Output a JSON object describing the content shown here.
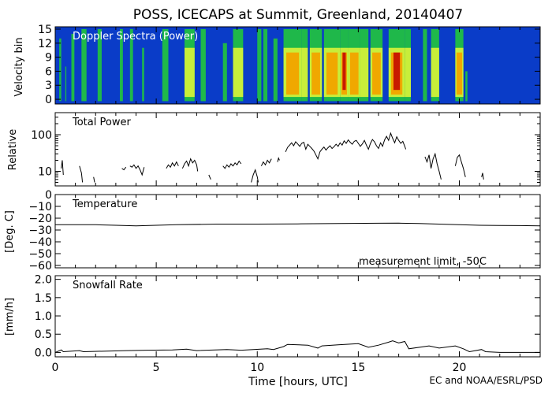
{
  "page": {
    "title": "POSS, ICECAPS at Summit, Greenland, 20140407",
    "xlabel": "Time [hours, UTC]",
    "credit": "EC and NOAA/ESRL/PSD",
    "x_ticks": [
      "0",
      "5",
      "10",
      "15",
      "20"
    ]
  },
  "chart_data": [
    {
      "type": "heatmap",
      "panel": "Doppler Spectra (Power)",
      "title": "Doppler Spectra (Power)",
      "ylabel": "Velocity bin",
      "xlim": [
        0,
        24
      ],
      "ylim": [
        -1,
        15.5
      ],
      "y_ticks": [
        0,
        3,
        6,
        9,
        12,
        15
      ],
      "y_tick_labels": [
        "0",
        "3",
        "6",
        "9",
        "12",
        "15"
      ],
      "colors": {
        "background": "#0a3cc8",
        "low": "#1fb84a",
        "mid": "#c8ee3a",
        "high": "#f0a800",
        "peak": "#c81a00"
      },
      "echo_segments": [
        {
          "x0": 0.2,
          "x1": 0.3,
          "top": 13,
          "level": 1
        },
        {
          "x0": 0.5,
          "x1": 0.55,
          "top": 7,
          "level": 1
        },
        {
          "x0": 0.8,
          "x1": 0.95,
          "top": 14,
          "level": 1
        },
        {
          "x0": 1.3,
          "x1": 1.55,
          "top": 15,
          "level": 1
        },
        {
          "x0": 2.1,
          "x1": 2.3,
          "top": 15,
          "level": 1
        },
        {
          "x0": 3.2,
          "x1": 3.35,
          "top": 15,
          "level": 1
        },
        {
          "x0": 3.7,
          "x1": 3.85,
          "top": 15,
          "level": 1
        },
        {
          "x0": 4.3,
          "x1": 4.4,
          "top": 11,
          "level": 1
        },
        {
          "x0": 5.3,
          "x1": 5.6,
          "top": 15,
          "level": 1
        },
        {
          "x0": 6.4,
          "x1": 6.9,
          "top": 15,
          "level": 2
        },
        {
          "x0": 7.2,
          "x1": 7.45,
          "top": 15,
          "level": 1
        },
        {
          "x0": 8.3,
          "x1": 8.5,
          "top": 12,
          "level": 1
        },
        {
          "x0": 8.8,
          "x1": 9.3,
          "top": 15,
          "level": 2
        },
        {
          "x0": 10.0,
          "x1": 10.2,
          "top": 15,
          "level": 1
        },
        {
          "x0": 10.3,
          "x1": 10.5,
          "top": 15,
          "level": 1
        },
        {
          "x0": 10.8,
          "x1": 11.0,
          "top": 13,
          "level": 1
        },
        {
          "x0": 11.3,
          "x1": 12.2,
          "top": 15,
          "level": 3
        },
        {
          "x0": 12.2,
          "x1": 12.5,
          "top": 15,
          "level": 2
        },
        {
          "x0": 12.6,
          "x1": 13.2,
          "top": 15,
          "level": 3
        },
        {
          "x0": 13.3,
          "x1": 14.1,
          "top": 15,
          "level": 3
        },
        {
          "x0": 14.1,
          "x1": 14.5,
          "top": 15,
          "level": 4
        },
        {
          "x0": 14.5,
          "x1": 15.1,
          "top": 15,
          "level": 3
        },
        {
          "x0": 15.1,
          "x1": 15.5,
          "top": 15,
          "level": 2
        },
        {
          "x0": 15.6,
          "x1": 16.2,
          "top": 15,
          "level": 3
        },
        {
          "x0": 16.5,
          "x1": 17.3,
          "top": 15,
          "level": 4
        },
        {
          "x0": 17.3,
          "x1": 17.6,
          "top": 15,
          "level": 2
        },
        {
          "x0": 18.2,
          "x1": 18.4,
          "top": 15,
          "level": 1
        },
        {
          "x0": 18.6,
          "x1": 19.0,
          "top": 15,
          "level": 2
        },
        {
          "x0": 19.8,
          "x1": 20.2,
          "top": 15,
          "level": 3
        },
        {
          "x0": 20.3,
          "x1": 20.4,
          "top": 6,
          "level": 1
        }
      ]
    },
    {
      "type": "line",
      "panel": "Total Power",
      "title": "Total Power",
      "ylabel": "Relative",
      "scale": "log",
      "xlim": [
        0,
        24
      ],
      "ylim": [
        4,
        400
      ],
      "y_ticks": [
        10,
        100
      ],
      "y_tick_labels": [
        "10",
        "100"
      ],
      "minor_ticks": [
        5,
        6,
        7,
        8,
        9,
        20,
        30,
        40,
        50,
        60,
        70,
        80,
        90,
        200,
        300
      ],
      "segments": [
        [
          [
            0.3,
            12
          ],
          [
            0.35,
            20
          ],
          [
            0.4,
            8
          ]
        ],
        [
          [
            1.2,
            14
          ],
          [
            1.3,
            9
          ],
          [
            1.35,
            5
          ]
        ],
        [
          [
            1.9,
            7
          ],
          [
            1.95,
            5
          ]
        ],
        [
          [
            3.3,
            12
          ],
          [
            3.4,
            11
          ],
          [
            3.5,
            13
          ]
        ],
        [
          [
            3.7,
            14
          ],
          [
            3.8,
            13
          ],
          [
            3.9,
            15
          ],
          [
            4.0,
            12
          ],
          [
            4.1,
            14
          ],
          [
            4.2,
            11
          ],
          [
            4.3,
            8
          ],
          [
            4.4,
            13
          ]
        ],
        [
          [
            5.5,
            12
          ],
          [
            5.6,
            15
          ],
          [
            5.7,
            13
          ],
          [
            5.8,
            17
          ],
          [
            5.9,
            14
          ],
          [
            6.0,
            18
          ],
          [
            6.1,
            14
          ]
        ],
        [
          [
            6.3,
            12
          ],
          [
            6.4,
            16
          ],
          [
            6.5,
            19
          ],
          [
            6.6,
            14
          ],
          [
            6.7,
            22
          ],
          [
            6.8,
            17
          ],
          [
            6.9,
            20
          ],
          [
            7.0,
            15
          ],
          [
            7.05,
            10
          ]
        ],
        [
          [
            7.6,
            8
          ],
          [
            7.7,
            6
          ]
        ],
        [
          [
            8.3,
            14
          ],
          [
            8.4,
            12
          ],
          [
            8.5,
            15
          ],
          [
            8.6,
            13
          ],
          [
            8.7,
            16
          ],
          [
            8.8,
            14
          ],
          [
            8.9,
            17
          ],
          [
            9.0,
            15
          ],
          [
            9.1,
            19
          ],
          [
            9.2,
            16
          ]
        ],
        [
          [
            9.7,
            5
          ],
          [
            9.8,
            8
          ],
          [
            9.9,
            11
          ],
          [
            10.0,
            7
          ],
          [
            10.05,
            5
          ]
        ],
        [
          [
            10.2,
            14
          ],
          [
            10.3,
            18
          ],
          [
            10.4,
            15
          ],
          [
            10.5,
            20
          ],
          [
            10.6,
            17
          ],
          [
            10.7,
            22
          ]
        ],
        [
          [
            11.0,
            18
          ],
          [
            11.05,
            23
          ],
          [
            11.1,
            20
          ]
        ],
        [
          [
            11.4,
            34
          ],
          [
            11.5,
            45
          ],
          [
            11.6,
            52
          ],
          [
            11.7,
            60
          ],
          [
            11.8,
            50
          ],
          [
            11.9,
            64
          ],
          [
            12.0,
            56
          ],
          [
            12.1,
            48
          ],
          [
            12.2,
            58
          ],
          [
            12.3,
            62
          ],
          [
            12.35,
            50
          ],
          [
            12.4,
            40
          ],
          [
            12.5,
            55
          ],
          [
            12.6,
            48
          ],
          [
            12.7,
            42
          ],
          [
            12.8,
            36
          ],
          [
            12.9,
            28
          ],
          [
            13.0,
            22
          ],
          [
            13.1,
            34
          ],
          [
            13.2,
            40
          ],
          [
            13.3,
            46
          ],
          [
            13.4,
            38
          ],
          [
            13.5,
            44
          ],
          [
            13.6,
            50
          ],
          [
            13.7,
            42
          ],
          [
            13.8,
            47
          ],
          [
            13.9,
            55
          ],
          [
            14.0,
            48
          ],
          [
            14.1,
            60
          ],
          [
            14.2,
            52
          ],
          [
            14.3,
            68
          ],
          [
            14.4,
            58
          ],
          [
            14.5,
            72
          ],
          [
            14.6,
            62
          ],
          [
            14.7,
            55
          ],
          [
            14.8,
            66
          ],
          [
            14.9,
            70
          ],
          [
            15.0,
            58
          ],
          [
            15.1,
            48
          ],
          [
            15.2,
            56
          ],
          [
            15.3,
            70
          ],
          [
            15.4,
            52
          ],
          [
            15.5,
            40
          ],
          [
            15.6,
            58
          ],
          [
            15.7,
            74
          ],
          [
            15.8,
            64
          ],
          [
            15.9,
            50
          ],
          [
            16.0,
            42
          ],
          [
            16.1,
            60
          ],
          [
            16.2,
            48
          ],
          [
            16.3,
            72
          ],
          [
            16.4,
            90
          ],
          [
            16.5,
            70
          ],
          [
            16.6,
            110
          ],
          [
            16.7,
            80
          ],
          [
            16.8,
            60
          ],
          [
            16.9,
            88
          ],
          [
            17.0,
            70
          ],
          [
            17.1,
            58
          ],
          [
            17.2,
            66
          ],
          [
            17.3,
            48
          ],
          [
            17.35,
            40
          ]
        ],
        [
          [
            18.3,
            25
          ],
          [
            18.4,
            18
          ],
          [
            18.5,
            28
          ],
          [
            18.6,
            12
          ],
          [
            18.7,
            22
          ],
          [
            18.8,
            30
          ],
          [
            18.9,
            16
          ],
          [
            19.0,
            10
          ],
          [
            19.1,
            6
          ]
        ],
        [
          [
            19.8,
            14
          ],
          [
            19.9,
            24
          ],
          [
            20.0,
            28
          ],
          [
            20.1,
            18
          ],
          [
            20.2,
            12
          ],
          [
            20.3,
            7
          ]
        ],
        [
          [
            21.1,
            7
          ],
          [
            21.15,
            9
          ],
          [
            21.2,
            6
          ]
        ]
      ]
    },
    {
      "type": "line",
      "panel": "Temperature",
      "title": "Temperature",
      "ylabel": "[Deg. C]",
      "xlim": [
        0,
        24
      ],
      "ylim": [
        -62,
        0
      ],
      "y_ticks": [
        0,
        -10,
        -20,
        -30,
        -40,
        -50,
        -60
      ],
      "y_tick_labels": [
        "0",
        "−10",
        "−20",
        "−30",
        "−40",
        "−50",
        "−60"
      ],
      "annotation": "measurement limit, -50C",
      "series": [
        {
          "x": [
            0,
            2,
            3,
            4,
            5,
            6,
            8,
            10,
            12,
            14,
            16,
            17,
            18,
            19,
            20,
            21,
            22,
            23,
            24
          ],
          "y": [
            -25.5,
            -25.5,
            -26.0,
            -26.5,
            -26.0,
            -25.5,
            -25.0,
            -25.0,
            -24.8,
            -24.5,
            -24.3,
            -24.2,
            -24.5,
            -25.0,
            -25.5,
            -26.0,
            -26.2,
            -26.3,
            -26.5
          ]
        }
      ]
    },
    {
      "type": "area",
      "panel": "Snowfall Rate",
      "title": "Snowfall Rate",
      "ylabel": "[mm/h]",
      "xlim": [
        0,
        24
      ],
      "ylim": [
        -0.12,
        2.1
      ],
      "y_ticks": [
        0.0,
        0.5,
        1.0,
        1.5,
        2.0
      ],
      "y_tick_labels": [
        "0.0",
        "0.5",
        "1.0",
        "1.5",
        "2.0"
      ],
      "series": [
        {
          "x": [
            0,
            0.3,
            0.4,
            1.2,
            1.4,
            3.5,
            4.5,
            5.8,
            6.5,
            7.0,
            8.5,
            9.2,
            10.5,
            10.8,
            11.3,
            11.5,
            12.5,
            13.0,
            13.2,
            14.0,
            15.0,
            15.5,
            16.0,
            16.5,
            16.7,
            17.0,
            17.3,
            17.5,
            18.5,
            19.0,
            19.8,
            20.2,
            20.5,
            21.1,
            21.3,
            22,
            24
          ],
          "y": [
            0.0,
            0.07,
            0.02,
            0.05,
            0.02,
            0.05,
            0.06,
            0.07,
            0.09,
            0.05,
            0.08,
            0.06,
            0.1,
            0.08,
            0.16,
            0.22,
            0.2,
            0.12,
            0.18,
            0.21,
            0.24,
            0.14,
            0.2,
            0.28,
            0.32,
            0.26,
            0.3,
            0.1,
            0.18,
            0.12,
            0.18,
            0.1,
            0.02,
            0.08,
            0.02,
            0.0,
            0.0
          ]
        }
      ]
    }
  ]
}
